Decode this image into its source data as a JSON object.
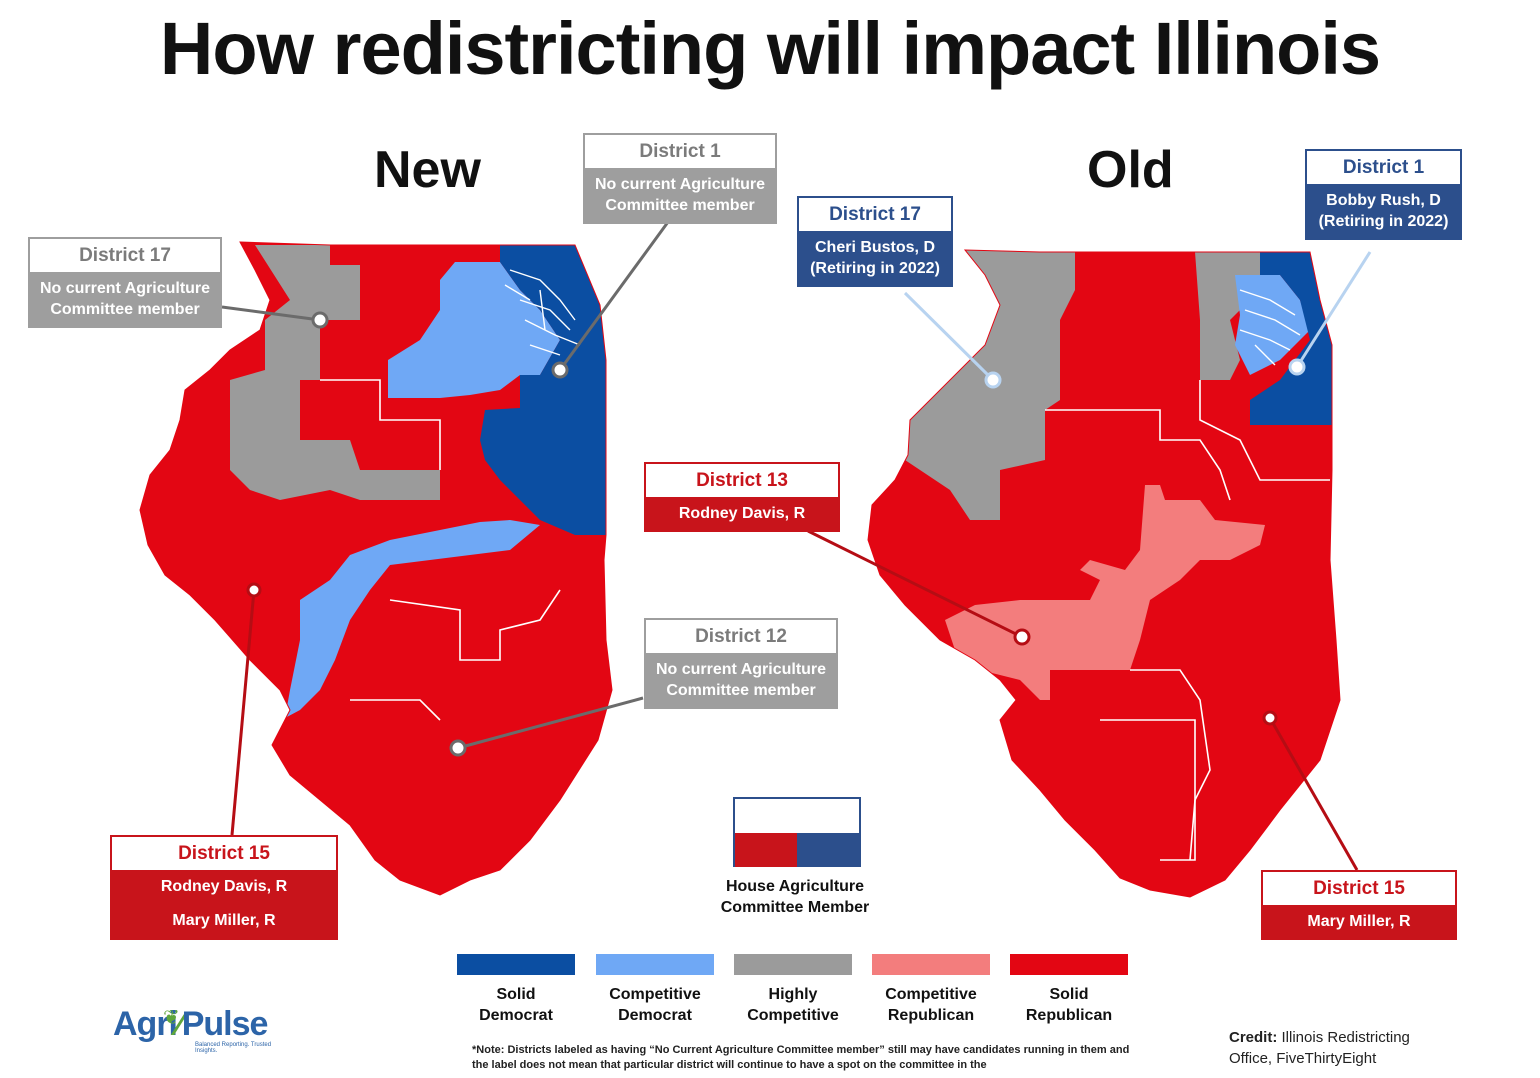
{
  "title": "How redistricting will impact Illinois",
  "maps": {
    "new_heading": "New",
    "old_heading": "Old"
  },
  "colors": {
    "solid_democrat": "#0b4ea2",
    "competitive_democrat": "#6fa8f5",
    "highly_competitive": "#9b9b9b",
    "competitive_republican": "#f37d7d",
    "solid_republican": "#e30613",
    "member_republican": "#c8141b",
    "member_democrat": "#2c4f8c"
  },
  "callouts": {
    "new_d17": {
      "title": "District 17",
      "lines": [
        "No current Agriculture",
        "Committee member"
      ]
    },
    "new_d1": {
      "title": "District 1",
      "lines": [
        "No current Agriculture",
        "Committee member"
      ]
    },
    "new_d12": {
      "title": "District 12",
      "lines": [
        "No current Agriculture",
        "Committee member"
      ]
    },
    "new_d15": {
      "title": "District 15",
      "lines": [
        "Rodney Davis, R",
        "Mary Miller, R"
      ]
    },
    "old_d17": {
      "title": "District 17",
      "lines": [
        "Cheri Bustos, D",
        "(Retiring in 2022)"
      ]
    },
    "old_d1": {
      "title": "District 1",
      "lines": [
        "Bobby Rush, D",
        "(Retiring in 2022)"
      ]
    },
    "old_d13": {
      "title": "District 13",
      "lines": [
        "Rodney Davis, R"
      ]
    },
    "old_d15": {
      "title": "District 15",
      "lines": [
        "Mary Miller, R"
      ]
    }
  },
  "member_key": {
    "line1": "House Agriculture",
    "line2": "Committee Member"
  },
  "legend": [
    {
      "line1": "Solid",
      "line2": "Democrat",
      "color": "#0b4ea2"
    },
    {
      "line1": "Competitive",
      "line2": "Democrat",
      "color": "#6fa8f5"
    },
    {
      "line1": "Highly",
      "line2": "Competitive",
      "color": "#9b9b9b"
    },
    {
      "line1": "Competitive",
      "line2": "Republican",
      "color": "#f37d7d"
    },
    {
      "line1": "Solid",
      "line2": "Republican",
      "color": "#e30613"
    }
  ],
  "logo": {
    "part1": "Agri",
    "part2": "Pulse",
    "tagline": "Balanced Reporting. Trusted Insights."
  },
  "note": "*Note: Districts labeled as having “No Current Agriculture Committee member” still may have candidates running in them and the label does not mean that particular district will continue to have a spot on the committee in the",
  "credit": {
    "label": "Credit:",
    "text": "Illinois Redistricting Office, FiveThirtyEight"
  }
}
